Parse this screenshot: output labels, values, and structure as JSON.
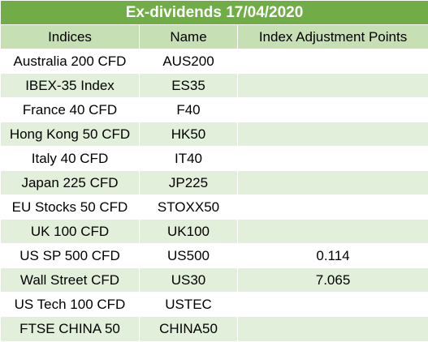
{
  "title": "Ex-dividends 17/04/2020",
  "headers": {
    "indices": "Indices",
    "name": "Name",
    "points": "Index Adjustment Points"
  },
  "rows": [
    {
      "index": "Australia 200 CFD",
      "name": "AUS200",
      "points": ""
    },
    {
      "index": "IBEX-35 Index",
      "name": "ES35",
      "points": ""
    },
    {
      "index": "France 40 CFD",
      "name": "F40",
      "points": ""
    },
    {
      "index": "Hong Kong 50 CFD",
      "name": "HK50",
      "points": ""
    },
    {
      "index": "Italy 40 CFD",
      "name": "IT40",
      "points": ""
    },
    {
      "index": "Japan 225 CFD",
      "name": "JP225",
      "points": ""
    },
    {
      "index": "EU Stocks 50 CFD",
      "name": "STOXX50",
      "points": ""
    },
    {
      "index": "UK 100 CFD",
      "name": "UK100",
      "points": ""
    },
    {
      "index": "US SP 500 CFD",
      "name": "US500",
      "points": "0.114"
    },
    {
      "index": "Wall Street CFD",
      "name": "US30",
      "points": "7.065"
    },
    {
      "index": "US Tech 100 CFD",
      "name": "USTEC",
      "points": ""
    },
    {
      "index": "FTSE CHINA 50",
      "name": "CHINA50",
      "points": ""
    }
  ]
}
